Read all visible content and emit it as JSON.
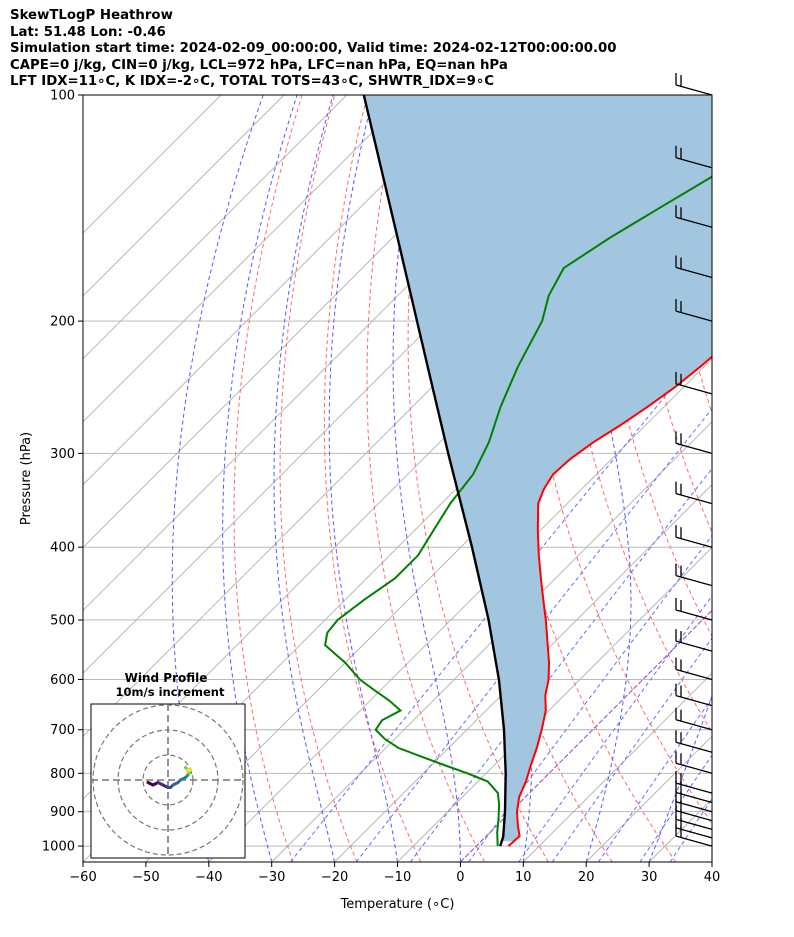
{
  "header": {
    "line1": "SkewTLogP Heathrow",
    "line2": "Lat: 51.48   Lon: -0.46",
    "line3": "Simulation start time: 2024-02-09_00:00:00, Valid time: 2024-02-12T00:00:00.00",
    "line4": "CAPE=0 j/kg, CIN=0 j/kg, LCL=972 hPa, LFC=nan hPa, EQ=nan hPa",
    "line5": "LFT IDX=11∘C, K IDX=-2∘C, TOTAL TOTS=43∘C, SHWTR_IDX=9∘C"
  },
  "chart_data": {
    "type": "line",
    "xlabel": "Temperature (∘C)",
    "ylabel": "Pressure (hPa)",
    "xlim": [
      -60,
      40
    ],
    "ylim": [
      1050,
      100
    ],
    "yscale": "log",
    "skew_note": "isotherms skewed 45 degrees",
    "x_ticks": [
      "−60",
      "−50",
      "−40",
      "−30",
      "−20",
      "−10",
      "0",
      "10",
      "20",
      "30",
      "40"
    ],
    "y_ticks": [
      {
        "p": 1000,
        "label": "1000"
      },
      {
        "p": 900,
        "label": "900"
      },
      {
        "p": 800,
        "label": "800"
      },
      {
        "p": 700,
        "label": "700"
      },
      {
        "p": 600,
        "label": "600"
      },
      {
        "p": 500,
        "label": "500"
      },
      {
        "p": 400,
        "label": "400"
      },
      {
        "p": 300,
        "label": "300"
      },
      {
        "p": 200,
        "label": "200"
      },
      {
        "p": 100,
        "label": "100"
      }
    ],
    "grid": true,
    "colors": {
      "temperature": "#ff0000",
      "dewpoint": "#008000",
      "parcel": "#000000",
      "shade": "#a3c6e0",
      "dry_adiabat": "#ff6a6a",
      "moist_adiabat": "#4d5cff",
      "mixing_ratio": "#6a6aff",
      "isotherm": "#b0b0b0",
      "zero_line": "#a050c0"
    },
    "temperature": {
      "p": [
        985,
        1000,
        970,
        940,
        900,
        860,
        820,
        780,
        740,
        700,
        660,
        630,
        600,
        570,
        540,
        520,
        500,
        470,
        440,
        410,
        380,
        350,
        335,
        320,
        305,
        290,
        275,
        260,
        245,
        230,
        215,
        200,
        185,
        170,
        155,
        140,
        125,
        115,
        100
      ],
      "t": [
        4.4,
        5.1,
        5.3,
        3.4,
        1.0,
        -1.0,
        -2.4,
        -4.2,
        -6.0,
        -8.1,
        -10.5,
        -13.0,
        -15.0,
        -17.6,
        -20.6,
        -22.7,
        -24.9,
        -28.5,
        -32.3,
        -36.3,
        -40.4,
        -44.6,
        -46.0,
        -46.9,
        -46.6,
        -45.6,
        -44.0,
        -42.6,
        -41.4,
        -40.6,
        -40.0,
        -39.7,
        -38.5,
        -36.8,
        -34.5,
        -32.2,
        -32.0,
        -32.6,
        -31.0
      ]
    },
    "dewpoint": {
      "p": [
        985,
        1000,
        960,
        920,
        880,
        850,
        820,
        800,
        780,
        760,
        740,
        720,
        700,
        680,
        660,
        640,
        620,
        600,
        570,
        540,
        520,
        500,
        470,
        440,
        410,
        380,
        350,
        320,
        290,
        260,
        230,
        200,
        185,
        170,
        155,
        140,
        125,
        100
      ],
      "t": [
        3.0,
        3.4,
        1.2,
        -0.8,
        -3.0,
        -5.0,
        -8.5,
        -13.0,
        -18.0,
        -23.0,
        -28.0,
        -31.6,
        -34.5,
        -35.0,
        -33.6,
        -37.0,
        -41.0,
        -45.0,
        -50.0,
        -56.0,
        -57.6,
        -58.0,
        -57.0,
        -55.5,
        -55.5,
        -57.0,
        -58.6,
        -59.6,
        -62.2,
        -66.0,
        -69.6,
        -73.0,
        -76.0,
        -78.0,
        -75.5,
        -72.0,
        -68.0,
        -63.0
      ]
    },
    "parcel": {
      "p": [
        1000,
        972,
        900,
        800,
        700,
        600,
        500,
        400,
        300,
        250,
        200,
        150,
        100
      ],
      "t": [
        3.8,
        2.8,
        -0.9,
        -6.9,
        -14.1,
        -22.9,
        -34.0,
        -48.2,
        -66.9,
        -78.6,
        -92.9,
        -111.3,
        -137.3
      ]
    },
    "wind_barbs": {
      "p": [
        1000,
        975,
        950,
        925,
        900,
        875,
        850,
        800,
        750,
        700,
        650,
        600,
        550,
        500,
        450,
        400,
        350,
        300,
        250,
        200,
        175,
        150,
        125,
        100
      ]
    },
    "hodograph": {
      "title": "Wind Profile",
      "subtitle": "10m/s increment",
      "rings_ms": [
        10,
        20,
        30
      ],
      "u": [
        -8,
        -6,
        -4,
        -2,
        0,
        1,
        2,
        4,
        5,
        7,
        8,
        8,
        9,
        9,
        8,
        7,
        8,
        8,
        9,
        8
      ],
      "v": [
        -1,
        -2,
        -1,
        -2,
        -3,
        -3,
        -2,
        -1,
        0,
        1,
        2,
        3,
        4,
        3,
        4,
        5,
        4,
        3,
        4,
        4
      ]
    }
  }
}
